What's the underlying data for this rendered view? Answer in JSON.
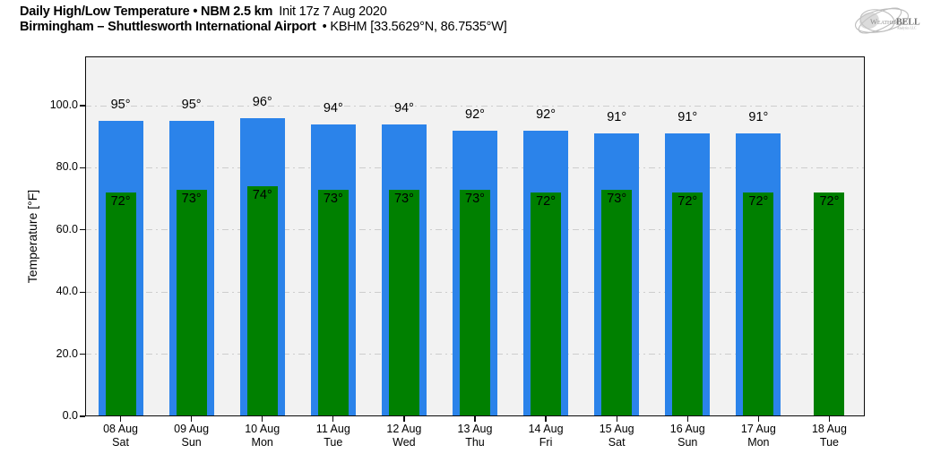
{
  "header": {
    "title_main": "Daily High/Low Temperature • NBM 2.5 km",
    "title_init": "Init 17z 7 Aug 2020",
    "subtitle_main": "Birmingham – Shuttlesworth International Airport",
    "subtitle_station": "• KBHM [33.5629°N, 86.7535°W]"
  },
  "logo": {
    "name_left": "Weather",
    "name_right": "BELL",
    "subtext": "Analytics LLC"
  },
  "chart_data": {
    "type": "bar",
    "title": "Daily High/Low Temperature • NBM 2.5 km Init 17z 7 Aug 2020",
    "subtitle": "Birmingham – Shuttlesworth International Airport • KBHM [33.5629°N, 86.7535°W]",
    "ylabel": "Temperature [°F]",
    "ylim": [
      0,
      115.8
    ],
    "yticks": [
      0,
      20,
      40,
      60,
      80,
      100
    ],
    "ytick_labels": [
      "0.0",
      "20.0",
      "40.0",
      "60.0",
      "80.0",
      "100.0"
    ],
    "grid": "horizontal major gridlines, dash-dot, light gray",
    "legend_position": "none",
    "plot_background": "#f2f2f2",
    "value_unit_suffix": "°",
    "categories": [
      "08 Aug",
      "09 Aug",
      "10 Aug",
      "11 Aug",
      "12 Aug",
      "13 Aug",
      "14 Aug",
      "15 Aug",
      "16 Aug",
      "17 Aug",
      "18 Aug"
    ],
    "category_days": [
      "Sat",
      "Sun",
      "Mon",
      "Tue",
      "Wed",
      "Thu",
      "Fri",
      "Sat",
      "Sun",
      "Mon",
      "Tue"
    ],
    "series": [
      {
        "name": "Daily High",
        "color": "#2B83EA",
        "values": [
          95,
          95,
          96,
          94,
          94,
          92,
          92,
          91,
          91,
          91,
          null
        ]
      },
      {
        "name": "Daily Low",
        "color": "#008000",
        "values": [
          72,
          73,
          74,
          73,
          73,
          73,
          72,
          73,
          72,
          72,
          72
        ]
      }
    ]
  }
}
